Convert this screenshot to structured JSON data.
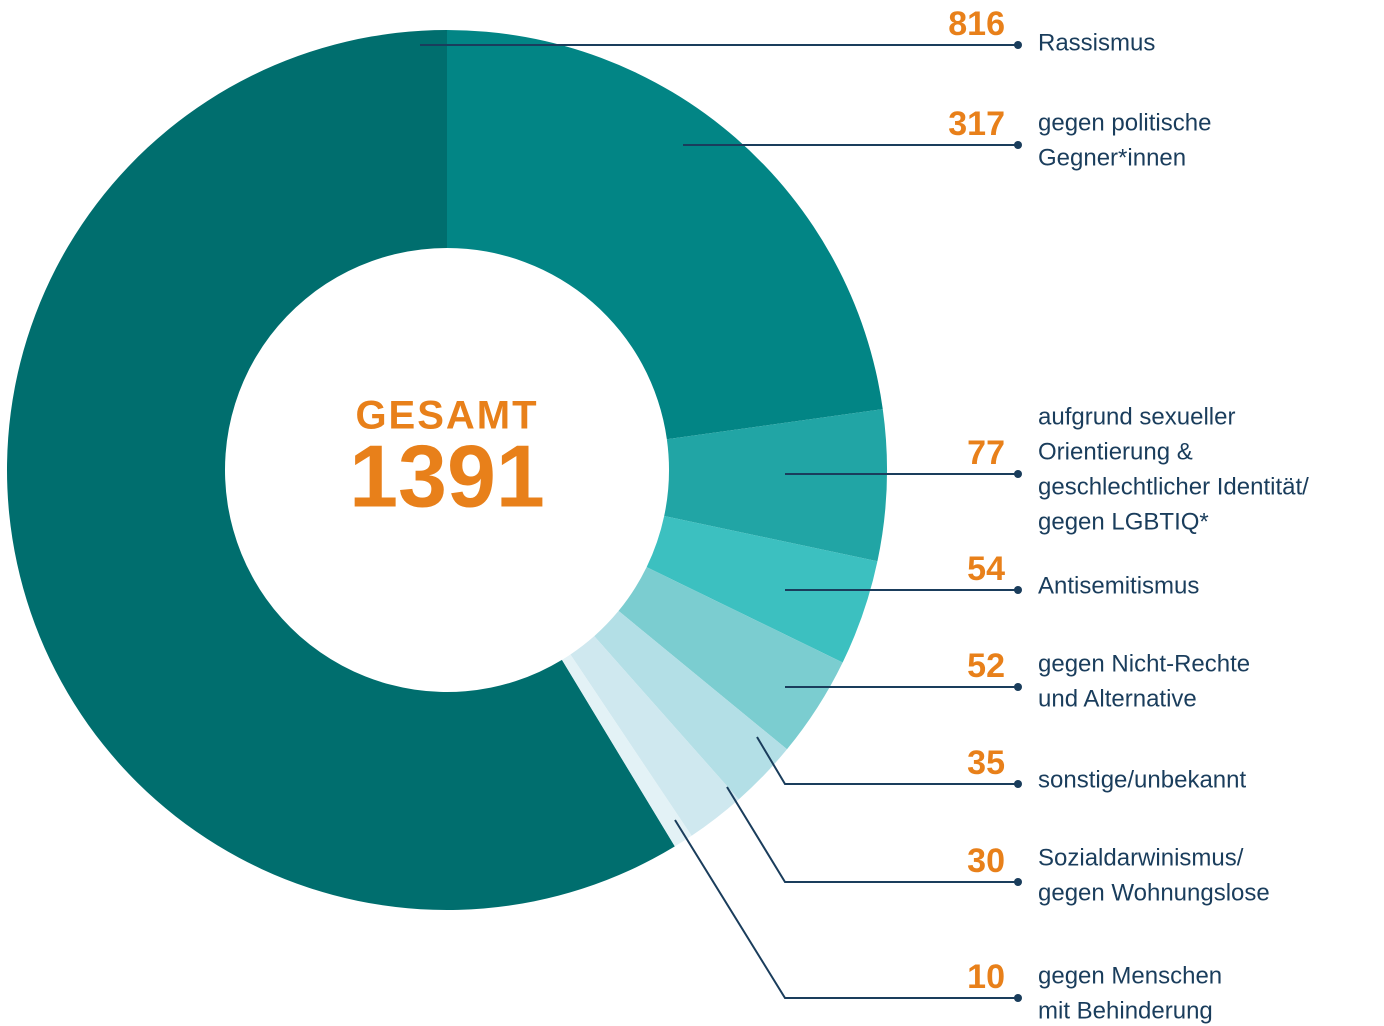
{
  "chart_data": {
    "type": "donut",
    "center_title": "GESAMT",
    "center_value": 1391,
    "categories": [
      [
        "Rassismus"
      ],
      [
        "gegen politische",
        "Gegner*innen"
      ],
      [
        "aufgrund sexueller",
        "Orientierung &",
        "geschlechtlicher Identität/",
        "gegen LGBTIQ*"
      ],
      [
        "Antisemitismus"
      ],
      [
        "gegen Nicht-Rechte",
        "und Alternative"
      ],
      [
        "sonstige/unbekannt"
      ],
      [
        "Sozialdarwinismus/",
        "gegen Wohnungslose"
      ],
      [
        "gegen Menschen",
        "mit Behinderung"
      ]
    ],
    "values": [
      816,
      317,
      77,
      54,
      52,
      35,
      30,
      10
    ],
    "colors": [
      "#006e6e",
      "#028585",
      "#21a5a5",
      "#3cc0c0",
      "#7bcdd0",
      "#b3dfe6",
      "#cfe8ef",
      "#e3f2f6"
    ]
  }
}
